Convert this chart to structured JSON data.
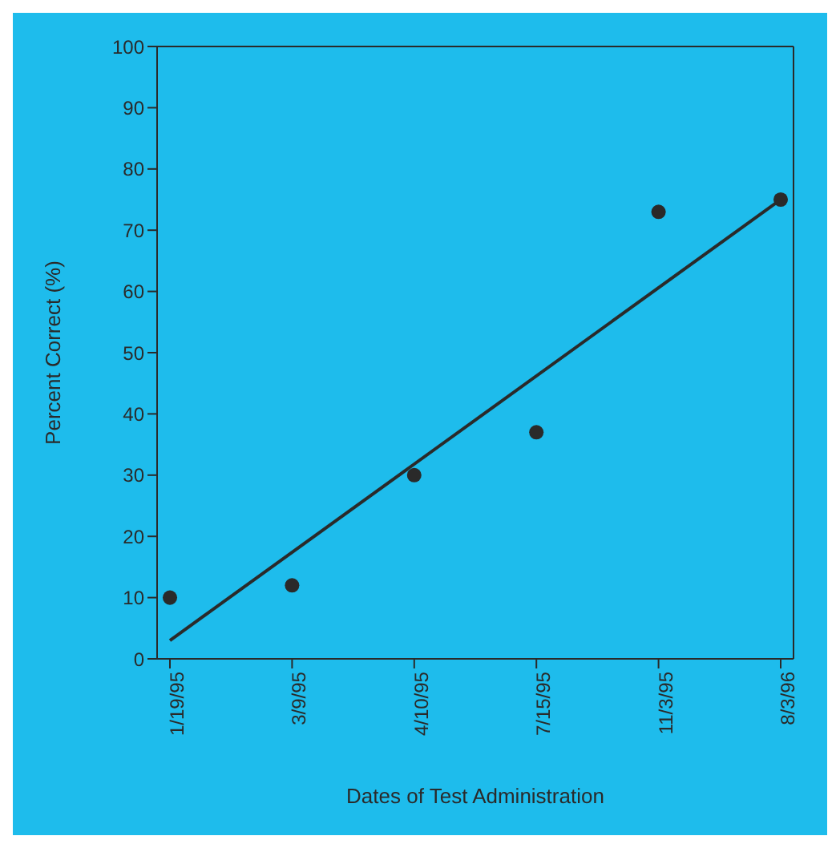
{
  "chart_data": {
    "type": "scatter",
    "xlabel": "Dates of Test Administration",
    "ylabel": "Percent Correct (%)",
    "categories": [
      "1/19/95",
      "3/9/95",
      "4/10/95",
      "7/15/95",
      "11/3/95",
      "8/3/96"
    ],
    "series": [
      {
        "color": "#2a2a2a",
        "marker": "circle",
        "values": [
          10,
          12,
          30,
          37,
          73,
          75
        ]
      },
      {
        "type": "line",
        "color": "#2a2a2a",
        "marker": "none",
        "line_style": "solid",
        "values": [
          3,
          null,
          null,
          null,
          null,
          75
        ]
      }
    ],
    "ylim": [
      0,
      100
    ],
    "yticks": [
      0,
      10,
      20,
      30,
      40,
      50,
      60,
      70,
      80,
      90,
      100
    ],
    "grid": false,
    "legend": false
  }
}
